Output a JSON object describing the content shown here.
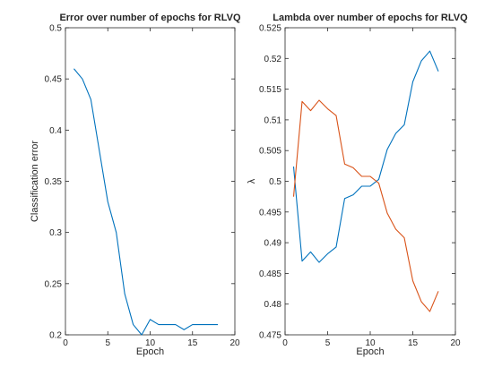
{
  "chart_data": [
    {
      "type": "line",
      "title": "Error over number of epochs for RLVQ",
      "xlabel": "Epoch",
      "ylabel": "Classification error",
      "xlim": [
        0,
        20
      ],
      "ylim": [
        0.2,
        0.5
      ],
      "xticks": [
        0,
        5,
        10,
        15,
        20
      ],
      "yticks": [
        0.2,
        0.25,
        0.3,
        0.35,
        0.4,
        0.45,
        0.5
      ],
      "xtick_labels": [
        "0",
        "5",
        "10",
        "15",
        "20"
      ],
      "ytick_labels": [
        "0.2",
        "0.25",
        "0.3",
        "0.35",
        "0.4",
        "0.45",
        "0.5"
      ],
      "grid": false,
      "series": [
        {
          "color": "#0072bd",
          "x": [
            1,
            2,
            3,
            4,
            5,
            6,
            7,
            8,
            9,
            10,
            11,
            12,
            13,
            14,
            15,
            16,
            17,
            18
          ],
          "y": [
            0.46,
            0.45,
            0.43,
            0.38,
            0.33,
            0.3,
            0.24,
            0.21,
            0.2,
            0.215,
            0.21,
            0.21,
            0.21,
            0.205,
            0.21,
            0.21,
            0.21,
            0.21
          ]
        }
      ]
    },
    {
      "type": "line",
      "title": "Lambda over number of epochs for RLVQ",
      "xlabel": "Epoch",
      "ylabel": "λ",
      "xlim": [
        0,
        20
      ],
      "ylim": [
        0.475,
        0.525
      ],
      "xticks": [
        0,
        5,
        10,
        15,
        20
      ],
      "yticks": [
        0.475,
        0.48,
        0.485,
        0.49,
        0.495,
        0.5,
        0.505,
        0.51,
        0.515,
        0.52,
        0.525
      ],
      "xtick_labels": [
        "0",
        "5",
        "10",
        "15",
        "20"
      ],
      "ytick_labels": [
        "0.475",
        "0.48",
        "0.485",
        "0.49",
        "0.495",
        "0.5",
        "0.505",
        "0.51",
        "0.515",
        "0.52",
        "0.525"
      ],
      "grid": false,
      "series": [
        {
          "color": "#0072bd",
          "x": [
            1,
            2,
            3,
            4,
            5,
            6,
            7,
            8,
            9,
            10,
            11,
            12,
            13,
            14,
            15,
            16,
            17,
            18
          ],
          "y": [
            0.5024,
            0.487,
            0.4885,
            0.4868,
            0.4882,
            0.4893,
            0.4972,
            0.4978,
            0.4992,
            0.4992,
            0.5003,
            0.5052,
            0.5078,
            0.5092,
            0.5162,
            0.5196,
            0.5212,
            0.5179
          ]
        },
        {
          "color": "#d95319",
          "x": [
            1,
            2,
            3,
            4,
            5,
            6,
            7,
            8,
            9,
            10,
            11,
            12,
            13,
            14,
            15,
            16,
            17,
            18
          ],
          "y": [
            0.4975,
            0.513,
            0.5115,
            0.5132,
            0.5118,
            0.5107,
            0.5028,
            0.5022,
            0.5008,
            0.5008,
            0.4997,
            0.4948,
            0.4922,
            0.4908,
            0.4838,
            0.4804,
            0.4788,
            0.4821
          ]
        }
      ]
    }
  ]
}
